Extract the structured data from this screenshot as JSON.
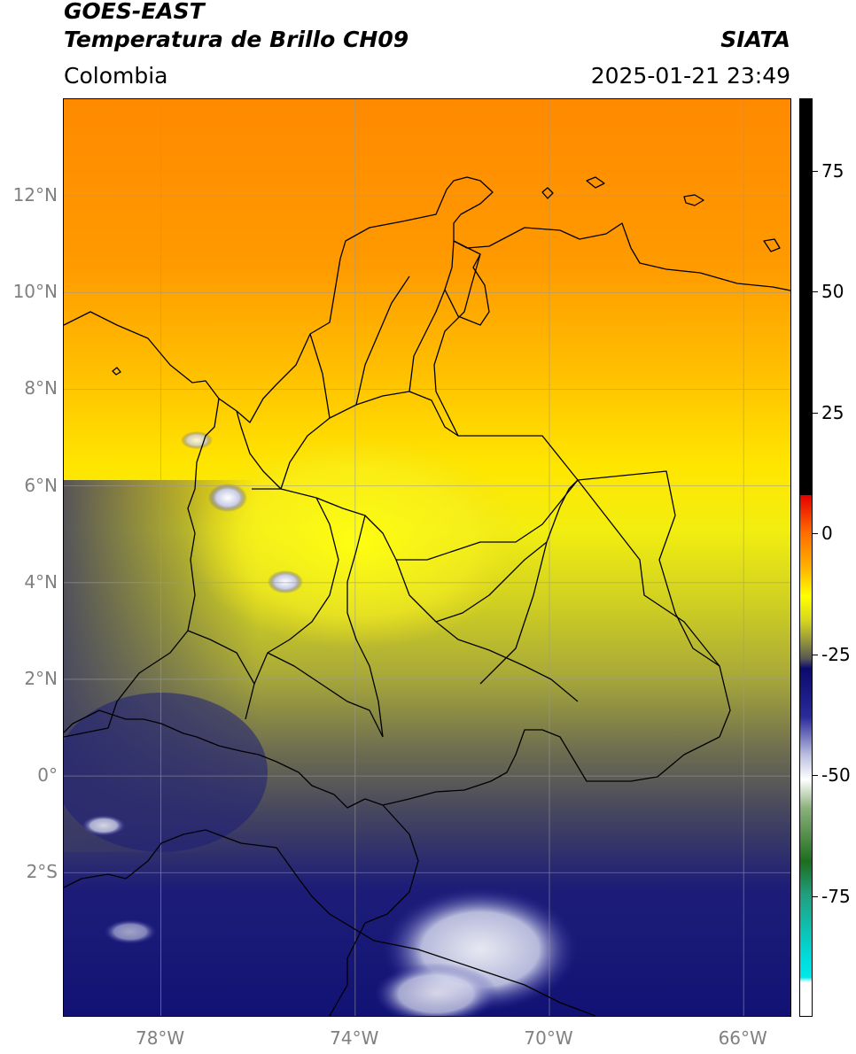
{
  "header": {
    "line1": "GOES-EAST",
    "line2": "Temperatura de Brillo CH09",
    "brand": "SIATA",
    "region": "Colombia",
    "timestamp": "2025-01-21 23:49"
  },
  "map": {
    "projection": "PlateCarree",
    "lon_range": [
      -80,
      -65
    ],
    "lat_range": [
      -5,
      14
    ],
    "lat_ticks": [
      {
        "value": 12,
        "label": "12°N"
      },
      {
        "value": 10,
        "label": "10°N"
      },
      {
        "value": 8,
        "label": "8°N"
      },
      {
        "value": 6,
        "label": "6°N"
      },
      {
        "value": 4,
        "label": "4°N"
      },
      {
        "value": 2,
        "label": "2°N"
      },
      {
        "value": 0,
        "label": "0°"
      },
      {
        "value": -2,
        "label": "2°S"
      }
    ],
    "lon_ticks": [
      {
        "value": -78,
        "label": "78°W"
      },
      {
        "value": -74,
        "label": "74°W"
      },
      {
        "value": -70,
        "label": "70°W"
      },
      {
        "value": -66,
        "label": "66°W"
      }
    ],
    "gridlines": true,
    "gridline_color": "#9a9a9a",
    "boundary_color": "#000000"
  },
  "colorbar": {
    "range": [
      -100,
      90
    ],
    "ticks": [
      {
        "value": 75,
        "label": "75"
      },
      {
        "value": 50,
        "label": "50"
      },
      {
        "value": 25,
        "label": "25"
      },
      {
        "value": 0,
        "label": "0"
      },
      {
        "value": -25,
        "label": "-25"
      },
      {
        "value": -50,
        "label": "-50"
      },
      {
        "value": -75,
        "label": "-75"
      }
    ],
    "stops": [
      {
        "value": 90,
        "color": "#000000"
      },
      {
        "value": 8,
        "color": "#000000"
      },
      {
        "value": 7.9,
        "color": "#e60000"
      },
      {
        "value": 0,
        "color": "#ff6e00"
      },
      {
        "value": -7,
        "color": "#ffb000"
      },
      {
        "value": -13,
        "color": "#ffff00"
      },
      {
        "value": -18,
        "color": "#d6d620"
      },
      {
        "value": -22,
        "color": "#9a9a3a"
      },
      {
        "value": -26,
        "color": "#555555"
      },
      {
        "value": -28,
        "color": "#0a0a6e"
      },
      {
        "value": -38,
        "color": "#2a2a9a"
      },
      {
        "value": -46,
        "color": "#bcc0e0"
      },
      {
        "value": -51,
        "color": "#ffffff"
      },
      {
        "value": -57,
        "color": "#8ab07a"
      },
      {
        "value": -68,
        "color": "#1e6e1e"
      },
      {
        "value": -75,
        "color": "#20a080"
      },
      {
        "value": -88,
        "color": "#00dcdc"
      },
      {
        "value": -92,
        "color": "#00e8e8"
      },
      {
        "value": -93,
        "color": "#ffffff"
      },
      {
        "value": -100,
        "color": "#ffffff"
      }
    ]
  }
}
